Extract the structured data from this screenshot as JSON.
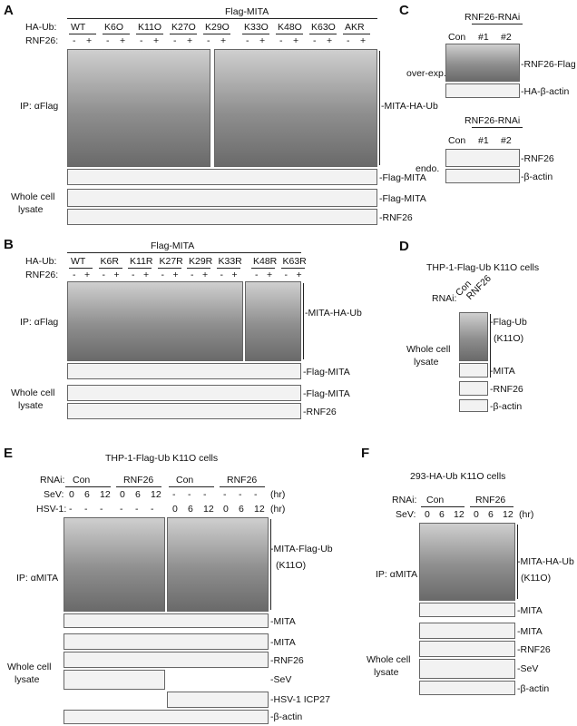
{
  "A": {
    "letter": "A",
    "top_label": "Flag-MITA",
    "row_haub": "HA-Ub:",
    "row_rnf": "RNF26:",
    "groups": [
      "WT",
      "K6O",
      "K11O",
      "K27O",
      "K29O",
      "K33O",
      "K48O",
      "K63O",
      "AKR"
    ],
    "minus": "-",
    "plus": "+",
    "ip": "IP: αFlag",
    "lbl_ub": "-MITA-HA-Ub",
    "lbl_flag1": "-Flag-MITA",
    "lbl_flag2": "-Flag-MITA",
    "lbl_rnf": "-RNF26",
    "wcl1": "Whole cell",
    "wcl2": "lysate"
  },
  "B": {
    "letter": "B",
    "top_label": "Flag-MITA",
    "row_haub": "HA-Ub:",
    "row_rnf": "RNF26:",
    "groups": [
      "WT",
      "K6R",
      "K11R",
      "K27R",
      "K29R",
      "K33R",
      "K48R",
      "K63R"
    ],
    "minus": "-",
    "plus": "+",
    "ip": "IP: αFlag",
    "lbl_ub": "-MITA-HA-Ub",
    "lbl_flag1": "-Flag-MITA",
    "lbl_flag2": "-Flag-MITA",
    "lbl_rnf": "-RNF26",
    "wcl1": "Whole cell",
    "wcl2": "lysate"
  },
  "C": {
    "letter": "C",
    "title1": "RNF26-RNAi",
    "title2": "RNF26-RNAi",
    "lanes": [
      "Con",
      "#1",
      "#2"
    ],
    "over": "over-exp.",
    "endo": "endo.",
    "lbl1": "-RNF26-Flag",
    "lbl2": "-HA-β-actin",
    "lbl3": "-RNF26",
    "lbl4": "-β-actin"
  },
  "D": {
    "letter": "D",
    "title": "THP-1-Flag-Ub K11O cells",
    "rnai": "RNAi:",
    "lanes": [
      "Con",
      "RNF26"
    ],
    "lbl_ub1": "-Flag-Ub",
    "lbl_ub2": "(K11O)",
    "lbl_mita": "-MITA",
    "lbl_rnf": "-RNF26",
    "lbl_actin": "-β-actin",
    "wcl1": "Whole cell",
    "wcl2": "lysate"
  },
  "E": {
    "letter": "E",
    "title": "THP-1-Flag-Ub K11O cells",
    "rnai": "RNAi:",
    "sev": "SeV:",
    "hsv": "HSV-1:",
    "con": "Con",
    "rnf": "RNF26",
    "times": [
      "0",
      "6",
      "12"
    ],
    "dash": "-",
    "hr1": "(hr)",
    "hr2": "(hr)",
    "ip": "IP: αMITA",
    "lbl_ub1": "-MITA-Flag-Ub",
    "lbl_ub2": "(K11O)",
    "lbl_mita1": "-MITA",
    "lbl_mita2": "-MITA",
    "lbl_rnf": "-RNF26",
    "lbl_sev": "-SeV",
    "lbl_icp": "-HSV-1 ICP27",
    "lbl_actin": "-β-actin",
    "wcl1": "Whole cell",
    "wcl2": "lysate"
  },
  "F": {
    "letter": "F",
    "title": "293-HA-Ub K11O cells",
    "rnai": "RNAi:",
    "sev": "SeV:",
    "con": "Con",
    "rnf": "RNF26",
    "times": [
      "0",
      "6",
      "12"
    ],
    "hr": "(hr)",
    "ip": "IP: αMITA",
    "lbl_ub1": "-MITA-HA-Ub",
    "lbl_ub2": "(K11O)",
    "lbl_mita1": "-MITA",
    "lbl_mita2": "-MITA",
    "lbl_rnf": "-RNF26",
    "lbl_sev": "-SeV",
    "lbl_actin": "-β-actin",
    "wcl1": "Whole cell",
    "wcl2": "lysate"
  }
}
